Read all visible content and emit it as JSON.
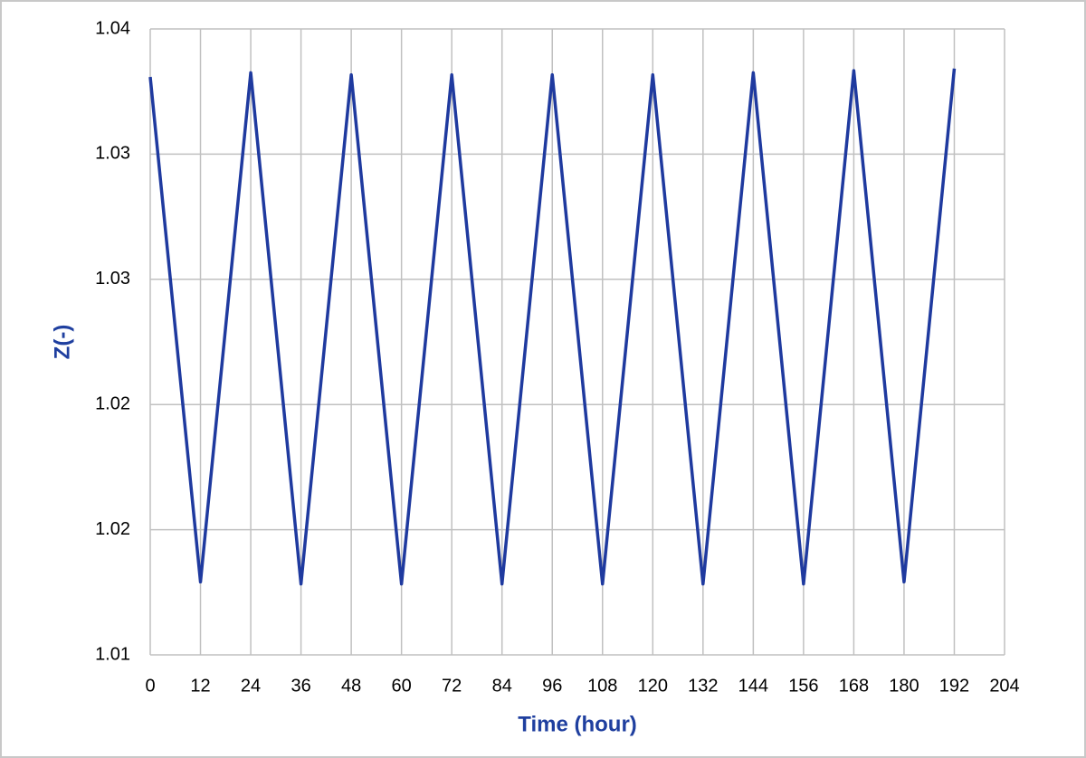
{
  "chart_data": {
    "type": "line",
    "x_label": "Time (hour)",
    "y_label": "Z(-)",
    "series": [
      {
        "name": "Z",
        "color": "#1f3a9f",
        "x": [
          0,
          12,
          24,
          36,
          48,
          60,
          72,
          84,
          96,
          108,
          120,
          132,
          144,
          156,
          168,
          180,
          192
        ],
        "values": [
          1.0377,
          1.0135,
          1.0379,
          1.0134,
          1.0378,
          1.0134,
          1.0378,
          1.0134,
          1.0378,
          1.0134,
          1.0378,
          1.0134,
          1.0379,
          1.0134,
          1.038,
          1.0135,
          1.0381
        ]
      }
    ],
    "xlim": [
      0,
      204
    ],
    "xticks": [
      0,
      12,
      24,
      36,
      48,
      60,
      72,
      84,
      96,
      108,
      120,
      132,
      144,
      156,
      168,
      180,
      192,
      204
    ],
    "ylim": [
      1.01,
      1.04
    ],
    "yticks": [
      {
        "value": 1.01,
        "label": "1.01"
      },
      {
        "value": 1.016,
        "label": "1.02"
      },
      {
        "value": 1.022,
        "label": "1.02"
      },
      {
        "value": 1.028,
        "label": "1.03"
      },
      {
        "value": 1.034,
        "label": "1.03"
      },
      {
        "value": 1.04,
        "label": "1.04"
      }
    ],
    "grid": true
  }
}
